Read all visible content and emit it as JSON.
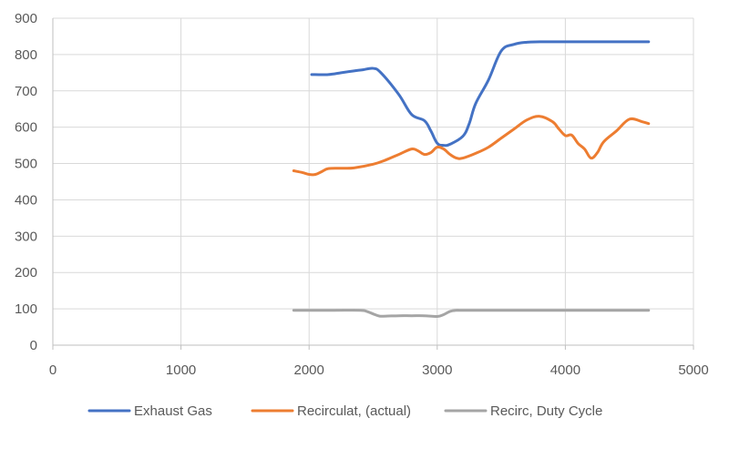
{
  "chart_data": {
    "type": "line",
    "title": "",
    "xlabel": "",
    "ylabel": "",
    "xlim": [
      0,
      5000
    ],
    "ylim": [
      0,
      900
    ],
    "x_ticks": [
      0,
      1000,
      2000,
      3000,
      4000,
      5000
    ],
    "y_ticks": [
      0,
      100,
      200,
      300,
      400,
      500,
      600,
      700,
      800,
      900
    ],
    "grid": "vertical and horizontal",
    "legend_position": "bottom",
    "series": [
      {
        "name": "Exhaust Gas",
        "color": "#4472c4",
        "x": [
          2020,
          2150,
          2250,
          2350,
          2420,
          2500,
          2560,
          2700,
          2800,
          2900,
          2950,
          3000,
          3050,
          3100,
          3200,
          3250,
          3300,
          3400,
          3500,
          3600,
          3700,
          3800,
          4000,
          4200,
          4400,
          4650
        ],
        "y": [
          745,
          745,
          750,
          755,
          758,
          762,
          750,
          690,
          635,
          618,
          590,
          556,
          550,
          553,
          575,
          610,
          665,
          730,
          810,
          828,
          834,
          835,
          835,
          835,
          835,
          835
        ]
      },
      {
        "name": "Recirculat, (actual)",
        "color": "#ed7d31",
        "x": [
          1880,
          1950,
          2000,
          2050,
          2100,
          2150,
          2250,
          2350,
          2500,
          2600,
          2700,
          2800,
          2850,
          2900,
          2950,
          3000,
          3050,
          3100,
          3150,
          3200,
          3300,
          3400,
          3500,
          3600,
          3700,
          3800,
          3900,
          3950,
          4000,
          4050,
          4100,
          4150,
          4200,
          4250,
          4300,
          4400,
          4500,
          4600,
          4650
        ],
        "y": [
          480,
          475,
          470,
          470,
          478,
          486,
          487,
          488,
          498,
          510,
          525,
          540,
          535,
          525,
          530,
          545,
          540,
          525,
          515,
          515,
          528,
          545,
          570,
          595,
          620,
          630,
          615,
          595,
          577,
          578,
          555,
          540,
          515,
          530,
          560,
          590,
          622,
          615,
          610
        ]
      },
      {
        "name": "Recirc, Duty Cycle",
        "color": "#a5a5a5",
        "x": [
          1880,
          2000,
          2200,
          2400,
          2450,
          2500,
          2550,
          2600,
          2700,
          2800,
          2900,
          3000,
          3050,
          3100,
          3150,
          3200,
          3500,
          4000,
          4500,
          4650
        ],
        "y": [
          96,
          96,
          96,
          96,
          93,
          86,
          80,
          80,
          81,
          81,
          81,
          79,
          84,
          93,
          96,
          96,
          96,
          96,
          96,
          96
        ]
      }
    ]
  }
}
